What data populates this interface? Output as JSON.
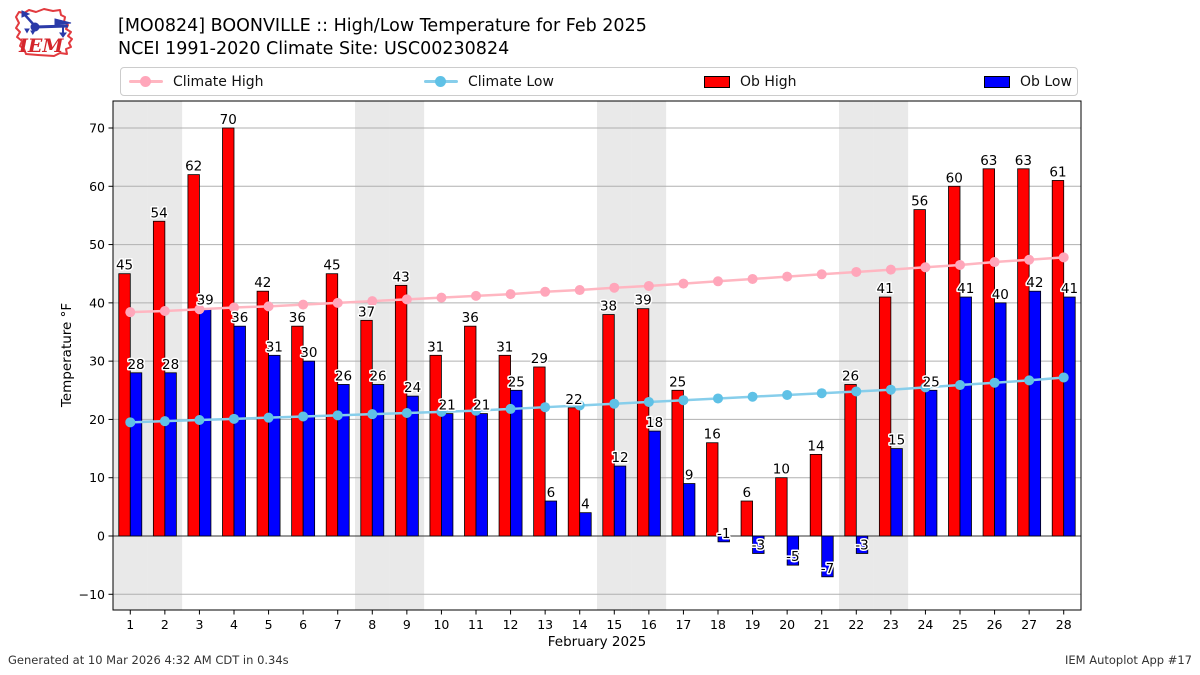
{
  "header": {
    "title_line1": "[MO0824] BOONVILLE :: High/Low Temperature for Feb 2025",
    "title_line2": "NCEI 1991-2020 Climate Site: USC00230824",
    "logo_text": "IEM"
  },
  "legend": {
    "items": [
      {
        "label": "Climate High",
        "type": "line-marker",
        "color": "#ffb6c1",
        "marker_color": "#ffa6ba"
      },
      {
        "label": "Climate Low",
        "type": "line-marker",
        "color": "#87ceeb",
        "marker_color": "#5fc1e6"
      },
      {
        "label": "Ob High",
        "type": "patch",
        "color": "#ff0000"
      },
      {
        "label": "Ob Low",
        "type": "patch",
        "color": "#0000ff"
      }
    ]
  },
  "footer": {
    "left": "Generated at 10 Mar 2026 4:32 AM CDT in 0.34s",
    "right": "IEM Autoplot App #17"
  },
  "chart_data": {
    "type": "bar",
    "title": "[MO0824] BOONVILLE :: High/Low Temperature for Feb 2025",
    "subtitle": "NCEI 1991-2020 Climate Site: USC00230824",
    "xlabel": "February 2025",
    "ylabel": "Temperature °F",
    "x": [
      1,
      2,
      3,
      4,
      5,
      6,
      7,
      8,
      9,
      10,
      11,
      12,
      13,
      14,
      15,
      16,
      17,
      18,
      19,
      20,
      21,
      22,
      23,
      24,
      25,
      26,
      27,
      28
    ],
    "ylim": [
      -12.7,
      74.6
    ],
    "yticks": [
      -10,
      0,
      10,
      20,
      30,
      40,
      50,
      60,
      70
    ],
    "grid": "horizontal",
    "legend_position": "top",
    "weekend_shaded_days": [
      1,
      2,
      8,
      9,
      15,
      16,
      22,
      23
    ],
    "series": [
      {
        "name": "Climate High",
        "type": "line",
        "color": "#ffb6c1",
        "marker_color": "#ffa6ba",
        "values": [
          38.4,
          38.6,
          38.9,
          39.2,
          39.4,
          39.7,
          40.0,
          40.3,
          40.6,
          40.9,
          41.2,
          41.5,
          41.9,
          42.2,
          42.6,
          42.9,
          43.3,
          43.7,
          44.1,
          44.5,
          44.9,
          45.3,
          45.7,
          46.1,
          46.5,
          47.0,
          47.4,
          47.8
        ]
      },
      {
        "name": "Climate Low",
        "type": "line",
        "color": "#87ceeb",
        "marker_color": "#5fc1e6",
        "values": [
          19.5,
          19.7,
          19.9,
          20.1,
          20.3,
          20.5,
          20.7,
          20.9,
          21.1,
          21.3,
          21.5,
          21.8,
          22.1,
          22.4,
          22.7,
          23.0,
          23.3,
          23.6,
          23.9,
          24.2,
          24.5,
          24.8,
          25.1,
          25.5,
          25.9,
          26.3,
          26.7,
          27.2
        ]
      },
      {
        "name": "Ob High",
        "type": "bar",
        "color": "#ff0000",
        "labels": true,
        "values": [
          45,
          54,
          62,
          70,
          42,
          36,
          45,
          37,
          43,
          31,
          36,
          31,
          29,
          22,
          38,
          39,
          25,
          16,
          6,
          10,
          14,
          26,
          41,
          56,
          60,
          63,
          63,
          61
        ]
      },
      {
        "name": "Ob Low",
        "type": "bar",
        "color": "#0000ff",
        "labels": true,
        "values": [
          28,
          28,
          39,
          36,
          31,
          30,
          26,
          26,
          24,
          21,
          21,
          25,
          6,
          4,
          12,
          18,
          9,
          -1,
          -3,
          -5,
          -7,
          -3,
          15,
          25,
          41,
          40,
          42,
          41
        ]
      }
    ],
    "colors": {
      "band": "#e9e9e9",
      "grid": "#b0b0b0",
      "zero_line": "#333333",
      "axis": "#000000"
    }
  }
}
